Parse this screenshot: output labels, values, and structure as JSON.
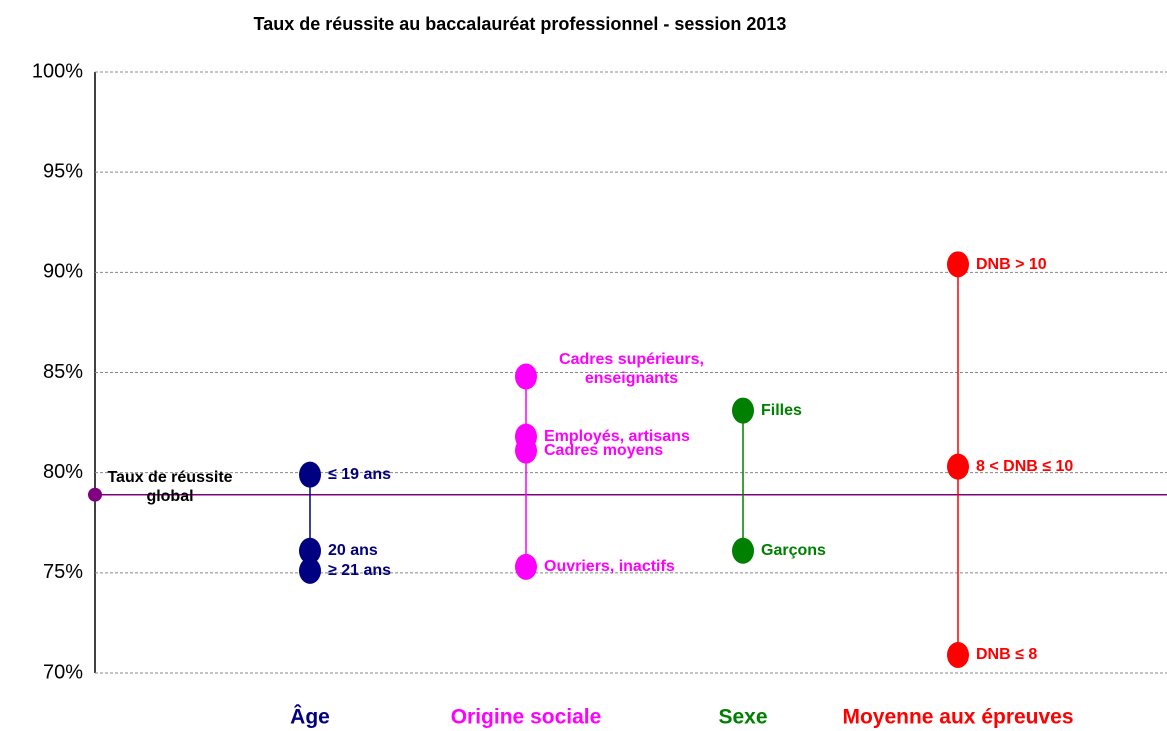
{
  "chart_data": {
    "type": "dot",
    "title": "Taux de réussite au baccalauréat professionnel - session 2013",
    "ylim": [
      70,
      100
    ],
    "yticks": [
      {
        "value": 70,
        "label": "70%"
      },
      {
        "value": 75,
        "label": "75%"
      },
      {
        "value": 80,
        "label": "80%"
      },
      {
        "value": 85,
        "label": "85%"
      },
      {
        "value": 90,
        "label": "90%"
      },
      {
        "value": 95,
        "label": "95%"
      },
      {
        "value": 100,
        "label": "100%"
      }
    ],
    "grid": true,
    "reference": {
      "label": "Taux de réussite global",
      "value": 78.9,
      "color": "#800080"
    },
    "series": [
      {
        "name": "Âge",
        "color": "#000080",
        "categories": [
          "≤ 19 ans",
          "20 ans",
          "≥ 21 ans"
        ],
        "values": [
          79.9,
          76.1,
          75.1
        ]
      },
      {
        "name": "Origine sociale",
        "color": "#ff00ff",
        "categories": [
          "Cadres supérieurs, enseignants",
          "Employés, artisans",
          "Cadres moyens",
          "Ouvriers, inactifs"
        ],
        "values": [
          84.8,
          81.8,
          81.1,
          75.3
        ]
      },
      {
        "name": "Sexe",
        "color": "#008000",
        "categories": [
          "Filles",
          "Garçons"
        ],
        "values": [
          83.1,
          76.1
        ]
      },
      {
        "name": "Moyenne aux épreuves",
        "color": "#ff0000",
        "categories": [
          "DNB > 10",
          "8 < DNB ≤ 10",
          "DNB ≤ 8"
        ],
        "values": [
          90.4,
          80.3,
          70.9
        ]
      }
    ]
  }
}
